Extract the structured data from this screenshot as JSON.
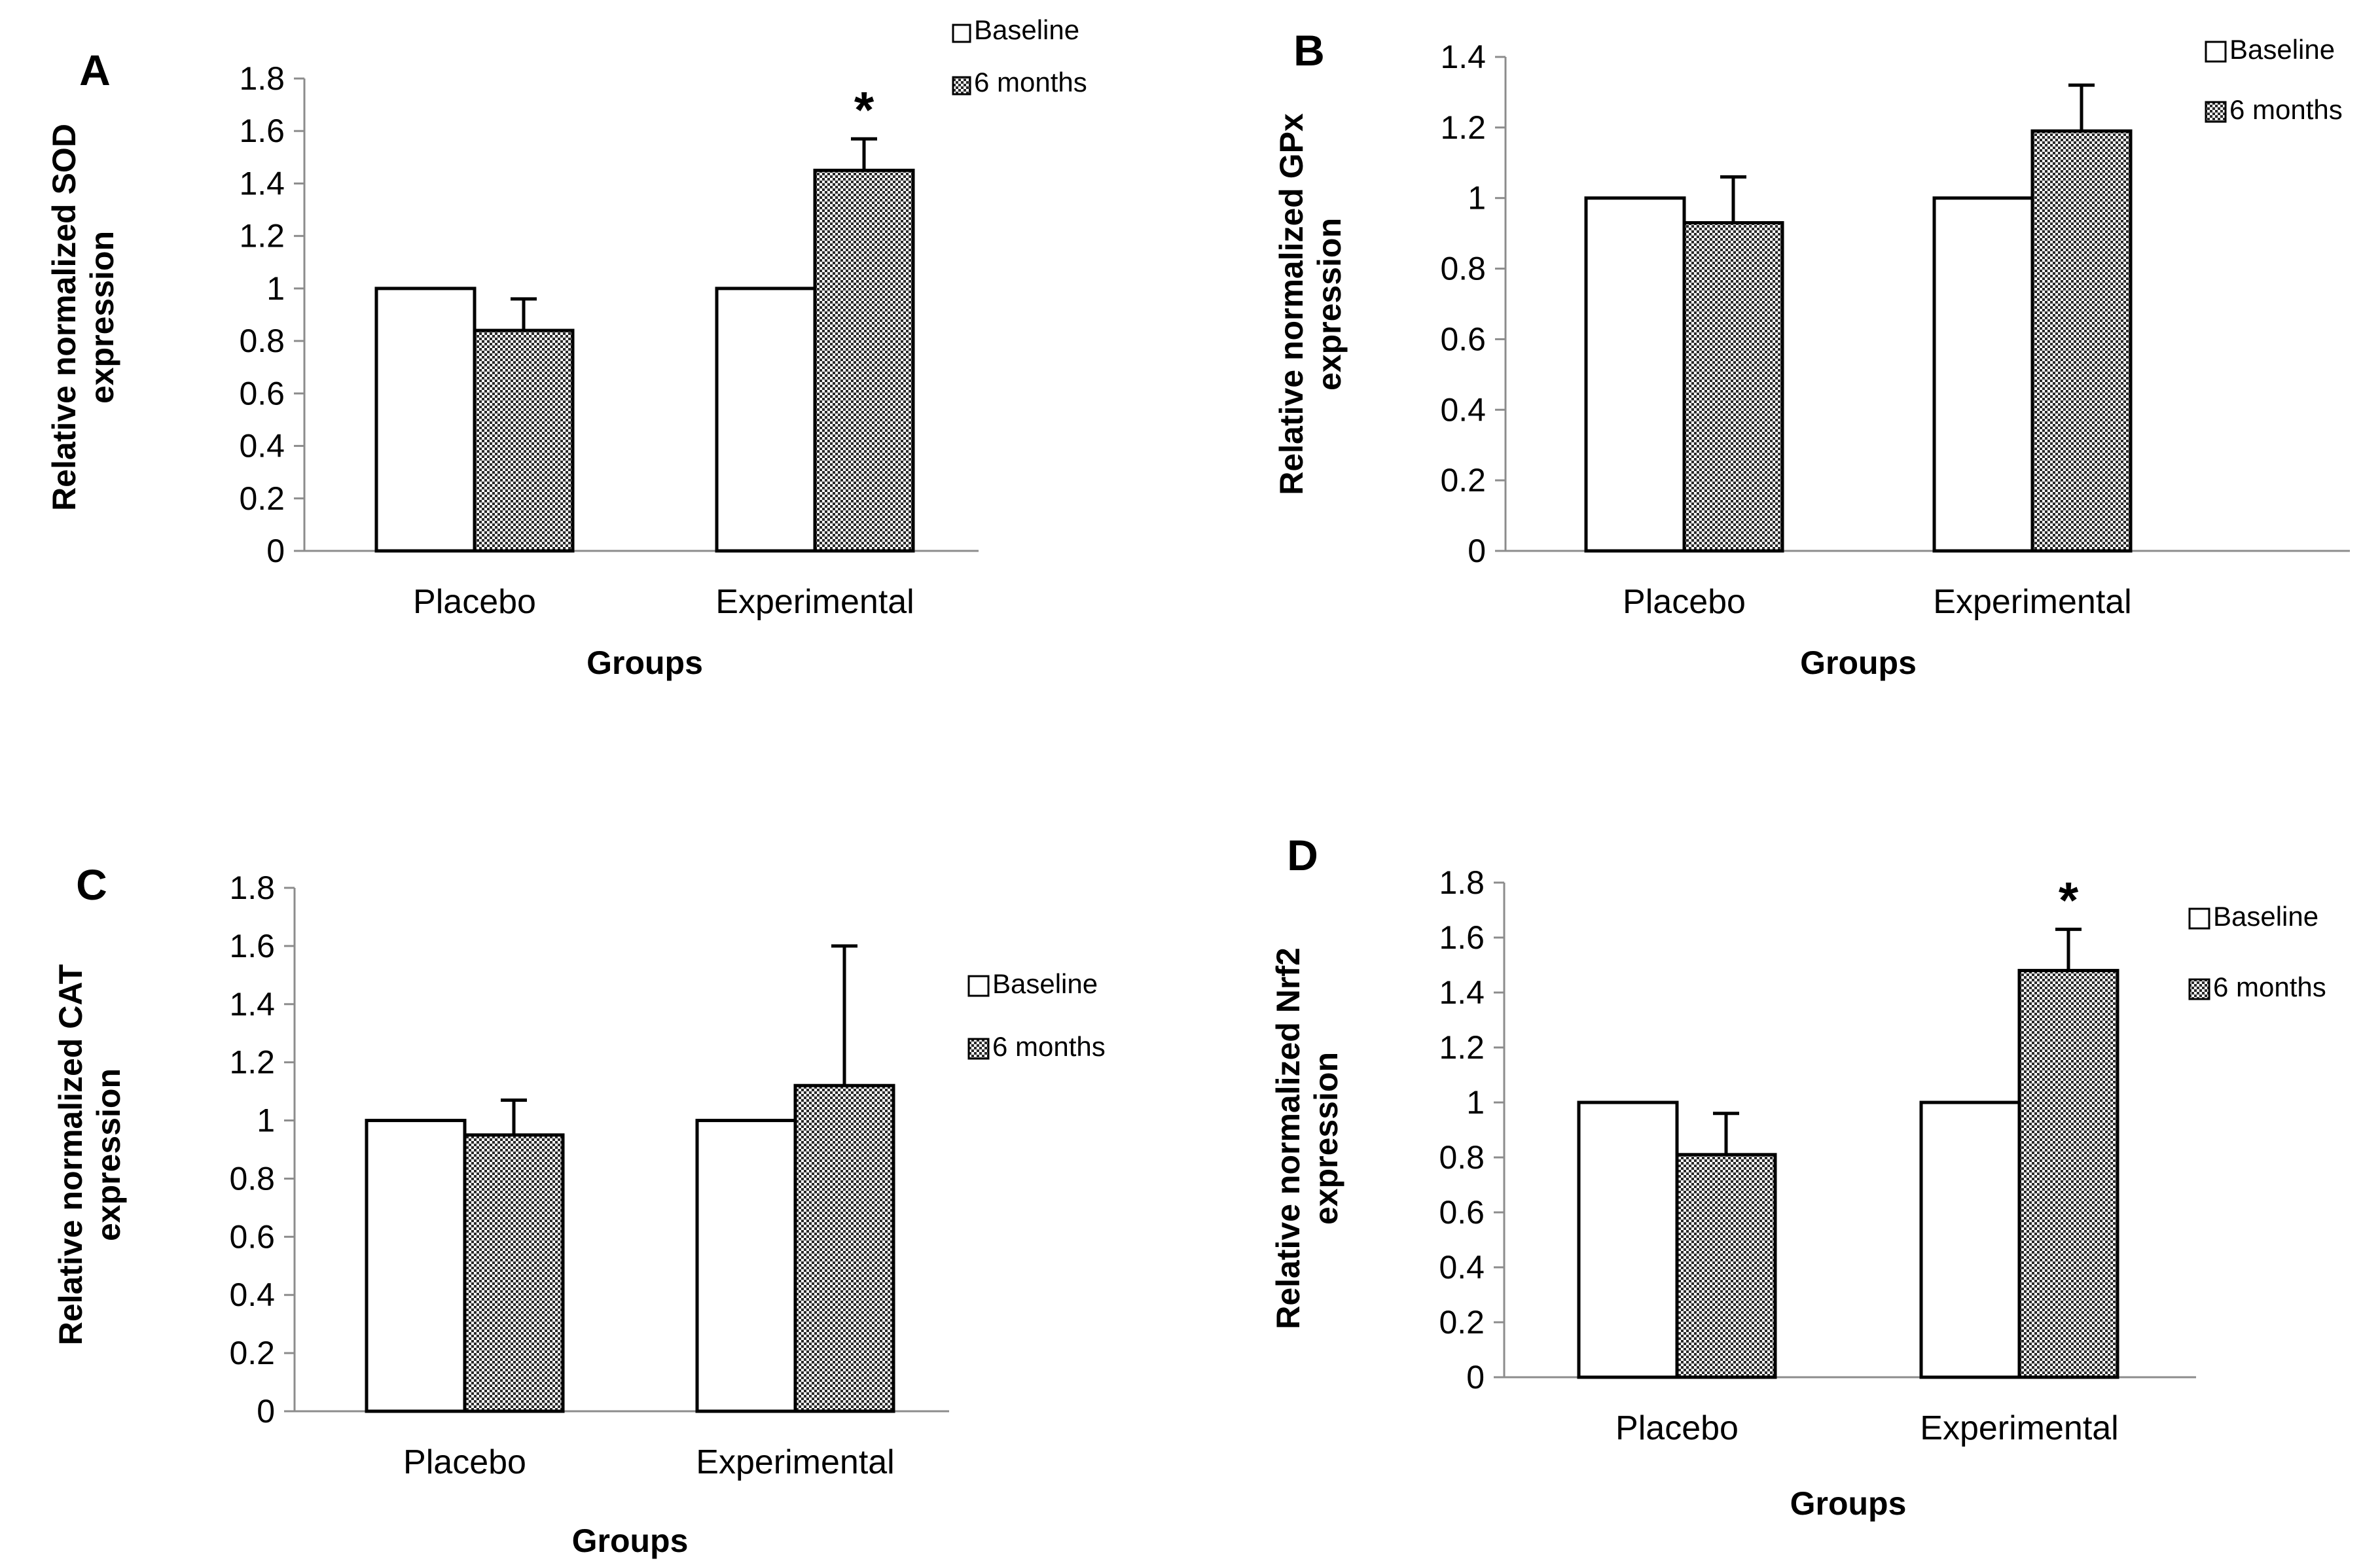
{
  "legend": {
    "series": [
      "Baseline",
      "6 months"
    ],
    "colors": {
      "Baseline": "#ffffff",
      "6 months": "#6e6e6e"
    }
  },
  "chart_data": [
    {
      "panel": "A",
      "type": "bar",
      "categories": [
        "Placebo",
        "Experimental"
      ],
      "series": [
        {
          "name": "Baseline",
          "values": [
            1.0,
            1.0
          ],
          "errors": [
            0.0,
            0.0
          ]
        },
        {
          "name": "6 months",
          "values": [
            0.84,
            1.45
          ],
          "errors": [
            0.12,
            0.12
          ]
        }
      ],
      "significance": [
        {
          "category": "Experimental",
          "series": "6 months",
          "mark": "*"
        }
      ],
      "xlabel": "Groups",
      "ylabel": [
        "Relative normalized SOD",
        "expression"
      ],
      "ylim": [
        0,
        1.8
      ],
      "ticks": [
        0,
        0.2,
        0.4,
        0.6,
        0.8,
        1,
        1.2,
        1.4,
        1.6,
        1.8
      ],
      "tick_labels": [
        "0",
        "0.2",
        "0.4",
        "0.6",
        "0.8",
        "1",
        "1.2",
        "1.4",
        "1.6",
        "1.8"
      ],
      "legend_position": "top-right",
      "grid": false
    },
    {
      "panel": "B",
      "type": "bar",
      "categories": [
        "Placebo",
        "Experimental"
      ],
      "series": [
        {
          "name": "Baseline",
          "values": [
            1.0,
            1.0
          ],
          "errors": [
            0.0,
            0.0
          ]
        },
        {
          "name": "6 months",
          "values": [
            0.93,
            1.19
          ],
          "errors": [
            0.13,
            0.13
          ]
        }
      ],
      "significance": [],
      "xlabel": "Groups",
      "ylabel": [
        "Relative normalized GPx",
        "expression"
      ],
      "ylim": [
        0,
        1.4
      ],
      "ticks": [
        0,
        0.2,
        0.4,
        0.6,
        0.8,
        1,
        1.2,
        1.4
      ],
      "tick_labels": [
        "0",
        "0.2",
        "0.4",
        "0.6",
        "0.8",
        "1",
        "1.2",
        "1.4"
      ],
      "legend_position": "top-right",
      "grid": false
    },
    {
      "panel": "C",
      "type": "bar",
      "categories": [
        "Placebo",
        "Experimental"
      ],
      "series": [
        {
          "name": "Baseline",
          "values": [
            1.0,
            1.0
          ],
          "errors": [
            0.0,
            0.0
          ]
        },
        {
          "name": "6 months",
          "values": [
            0.95,
            1.12
          ],
          "errors": [
            0.12,
            0.48
          ]
        }
      ],
      "significance": [],
      "xlabel": "Groups",
      "ylabel": [
        "Relative normalized CAT",
        "expression"
      ],
      "ylim": [
        0,
        1.8
      ],
      "ticks": [
        0,
        0.2,
        0.4,
        0.6,
        0.8,
        1,
        1.2,
        1.4,
        1.6,
        1.8
      ],
      "tick_labels": [
        "0",
        "0.2",
        "0.4",
        "0.6",
        "0.8",
        "1",
        "1.2",
        "1.4",
        "1.6",
        "1.8"
      ],
      "legend_position": "right",
      "grid": false
    },
    {
      "panel": "D",
      "type": "bar",
      "categories": [
        "Placebo",
        "Experimental"
      ],
      "series": [
        {
          "name": "Baseline",
          "values": [
            1.0,
            1.0
          ],
          "errors": [
            0.0,
            0.0
          ]
        },
        {
          "name": "6 months",
          "values": [
            0.81,
            1.48
          ],
          "errors": [
            0.15,
            0.15
          ]
        }
      ],
      "significance": [
        {
          "category": "Experimental",
          "series": "6 months",
          "mark": "*"
        }
      ],
      "xlabel": "Groups",
      "ylabel": [
        "Relative normalized Nrf2",
        "expression"
      ],
      "ylim": [
        0,
        1.8
      ],
      "ticks": [
        0,
        0.2,
        0.4,
        0.6,
        0.8,
        1,
        1.2,
        1.4,
        1.6,
        1.8
      ],
      "tick_labels": [
        "0",
        "0.2",
        "0.4",
        "0.6",
        "0.8",
        "1",
        "1.2",
        "1.4",
        "1.6",
        "1.8"
      ],
      "legend_position": "top-right",
      "grid": false
    }
  ]
}
